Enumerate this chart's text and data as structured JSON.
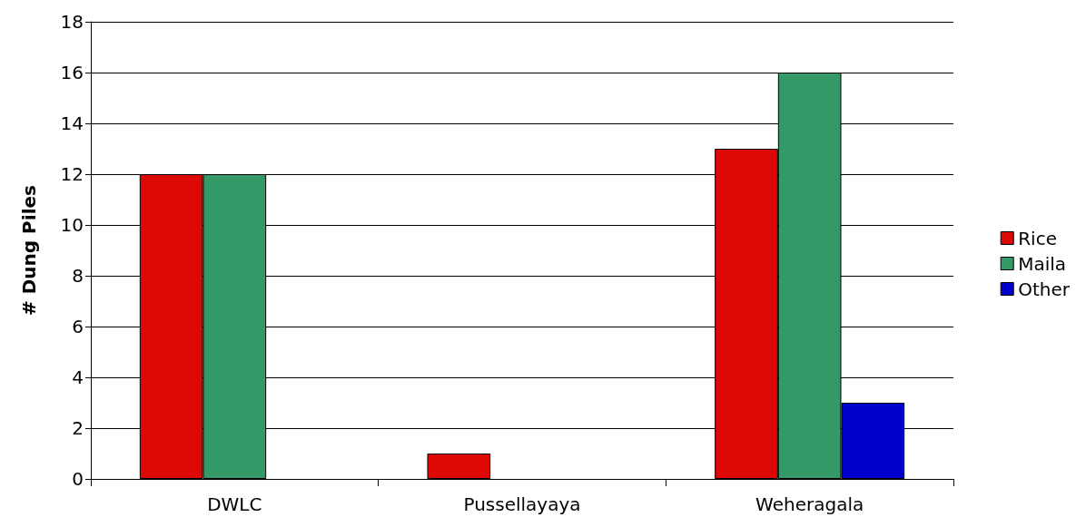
{
  "chart_data": {
    "type": "bar",
    "ylabel": "# Dung Piles",
    "categories": [
      "DWLC",
      "Pussellayaya",
      "Weheragala"
    ],
    "series": [
      {
        "name": "Rice",
        "color": "#dd0806",
        "values": [
          12,
          1,
          13
        ]
      },
      {
        "name": "Maila",
        "color": "#339966",
        "values": [
          12,
          0,
          16
        ]
      },
      {
        "name": "Other",
        "color": "#0000cc",
        "values": [
          0,
          0,
          3
        ]
      }
    ],
    "ylim": [
      0,
      18
    ],
    "yticks": [
      0,
      2,
      4,
      6,
      8,
      10,
      12,
      14,
      16,
      18
    ],
    "grid": "y",
    "legend": "right"
  }
}
